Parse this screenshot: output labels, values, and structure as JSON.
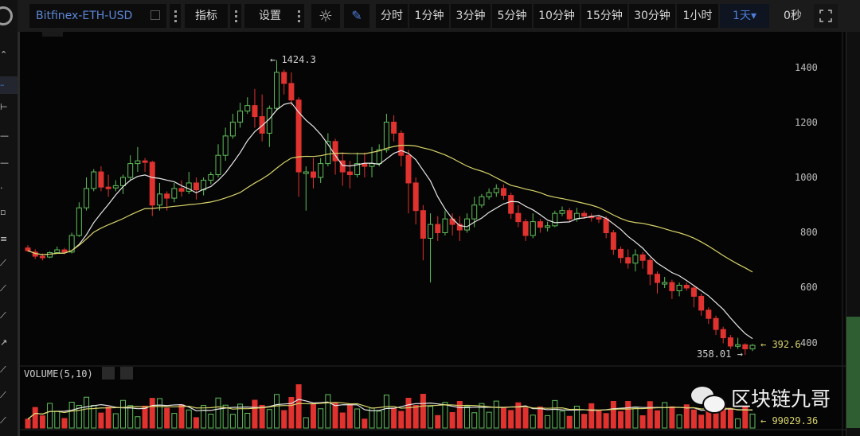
{
  "toolbar": {
    "symbol": "Bitfinex-ETH-USD",
    "indicators_label": "指标",
    "settings_label": "设置",
    "intervals": [
      "分时",
      "1分钟",
      "3分钟",
      "5分钟",
      "10分钟",
      "15分钟",
      "30分钟",
      "1小时",
      "1天▾"
    ],
    "selected_interval": "1天",
    "countdown": "0秒"
  },
  "colors": {
    "up": "#5fbf5a",
    "down": "#e0322f",
    "ma_fast": "#e8e8e8",
    "ma_slow": "#d8d46a",
    "accent": "#4f7dd8"
  },
  "chart_data": {
    "type": "candlestick",
    "title": "Bitfinex-ETH-USD 1天",
    "y_ticks": [
      400,
      600,
      800,
      1000,
      1200,
      1400
    ],
    "ylim": [
      340,
      1440
    ],
    "annotations": {
      "high": "1424.3",
      "low": "358.01",
      "last": "392.6",
      "volume_last": "99029.36"
    },
    "volume_panel_title": "VOLUME(5,10)",
    "candles": [
      [
        745,
        735,
        755,
        730
      ],
      [
        730,
        715,
        740,
        705
      ],
      [
        715,
        712,
        725,
        700
      ],
      [
        712,
        728,
        732,
        708
      ],
      [
        728,
        738,
        750,
        725
      ],
      [
        738,
        730,
        745,
        722
      ],
      [
        730,
        790,
        800,
        725
      ],
      [
        790,
        890,
        910,
        785
      ],
      [
        890,
        960,
        1000,
        880
      ],
      [
        960,
        1020,
        1030,
        950
      ],
      [
        1020,
        965,
        1040,
        950
      ],
      [
        965,
        962,
        1010,
        930
      ],
      [
        962,
        970,
        990,
        950
      ],
      [
        970,
        1000,
        1010,
        940
      ],
      [
        1000,
        1050,
        1080,
        990
      ],
      [
        1050,
        1060,
        1110,
        1020
      ],
      [
        1060,
        1055,
        1070,
        1020
      ],
      [
        1055,
        900,
        1060,
        860
      ],
      [
        900,
        940,
        980,
        880
      ],
      [
        940,
        925,
        950,
        880
      ],
      [
        925,
        960,
        980,
        910
      ],
      [
        960,
        950,
        990,
        930
      ],
      [
        950,
        980,
        1020,
        940
      ],
      [
        980,
        955,
        1000,
        920
      ],
      [
        955,
        990,
        1000,
        935
      ],
      [
        990,
        1010,
        1020,
        975
      ],
      [
        1010,
        1080,
        1120,
        1000
      ],
      [
        1080,
        1150,
        1180,
        1060
      ],
      [
        1150,
        1200,
        1230,
        1140
      ],
      [
        1200,
        1240,
        1270,
        1180
      ],
      [
        1240,
        1260,
        1290,
        1230
      ],
      [
        1260,
        1220,
        1320,
        1180
      ],
      [
        1220,
        1160,
        1300,
        1130
      ],
      [
        1160,
        1250,
        1260,
        1110
      ],
      [
        1250,
        1380,
        1424,
        1240
      ],
      [
        1380,
        1340,
        1390,
        1300
      ],
      [
        1340,
        1280,
        1380,
        1260
      ],
      [
        1280,
        1020,
        1290,
        930
      ],
      [
        1020,
        1020,
        1040,
        880
      ],
      [
        1020,
        1000,
        1070,
        960
      ],
      [
        1000,
        1050,
        1070,
        980
      ],
      [
        1050,
        1130,
        1160,
        1040
      ],
      [
        1130,
        1060,
        1140,
        1010
      ],
      [
        1060,
        1020,
        1090,
        970
      ],
      [
        1020,
        1010,
        1060,
        960
      ],
      [
        1010,
        1050,
        1090,
        1000
      ],
      [
        1050,
        1040,
        1090,
        1000
      ],
      [
        1040,
        1050,
        1110,
        1000
      ],
      [
        1050,
        1100,
        1120,
        1040
      ],
      [
        1100,
        1200,
        1230,
        1090
      ],
      [
        1200,
        1160,
        1225,
        1130
      ],
      [
        1160,
        1080,
        1170,
        1040
      ],
      [
        1080,
        980,
        1100,
        870
      ],
      [
        980,
        880,
        1000,
        830
      ],
      [
        880,
        780,
        900,
        700
      ],
      [
        780,
        830,
        870,
        620
      ],
      [
        830,
        800,
        860,
        770
      ],
      [
        800,
        850,
        880,
        790
      ],
      [
        850,
        830,
        870,
        790
      ],
      [
        830,
        810,
        860,
        770
      ],
      [
        810,
        850,
        870,
        800
      ],
      [
        850,
        900,
        930,
        820
      ],
      [
        900,
        930,
        940,
        890
      ],
      [
        930,
        945,
        960,
        920
      ],
      [
        945,
        960,
        975,
        930
      ],
      [
        960,
        935,
        975,
        920
      ],
      [
        935,
        870,
        945,
        850
      ],
      [
        870,
        840,
        900,
        820
      ],
      [
        840,
        790,
        850,
        770
      ],
      [
        790,
        840,
        870,
        780
      ],
      [
        840,
        820,
        850,
        800
      ],
      [
        820,
        825,
        840,
        805
      ],
      [
        825,
        870,
        880,
        820
      ],
      [
        870,
        880,
        895,
        860
      ],
      [
        880,
        850,
        890,
        840
      ],
      [
        850,
        870,
        890,
        840
      ],
      [
        870,
        860,
        880,
        850
      ],
      [
        860,
        855,
        870,
        840
      ],
      [
        855,
        850,
        865,
        835
      ],
      [
        850,
        800,
        860,
        780
      ],
      [
        800,
        740,
        810,
        720
      ],
      [
        740,
        710,
        750,
        690
      ],
      [
        710,
        690,
        740,
        670
      ],
      [
        690,
        720,
        740,
        660
      ],
      [
        720,
        700,
        730,
        670
      ],
      [
        700,
        650,
        710,
        610
      ],
      [
        650,
        620,
        660,
        580
      ],
      [
        620,
        620,
        640,
        600
      ],
      [
        620,
        590,
        630,
        560
      ],
      [
        590,
        610,
        620,
        570
      ],
      [
        610,
        600,
        620,
        590
      ],
      [
        600,
        570,
        610,
        530
      ],
      [
        570,
        520,
        580,
        500
      ],
      [
        520,
        490,
        530,
        470
      ],
      [
        490,
        450,
        500,
        430
      ],
      [
        450,
        420,
        460,
        400
      ],
      [
        420,
        390,
        430,
        380
      ],
      [
        390,
        395,
        420,
        380
      ],
      [
        395,
        380,
        400,
        358.01
      ],
      [
        380,
        392.6,
        398,
        372
      ]
    ]
  },
  "sidebar": {
    "tools": [
      "cursor",
      "crosshair",
      "horizontal-line",
      "line",
      "line2",
      "dot",
      "measure",
      "channel",
      "trend",
      "ray",
      "fib",
      "arrow",
      "pitchfork",
      "angle",
      "gann"
    ]
  }
}
